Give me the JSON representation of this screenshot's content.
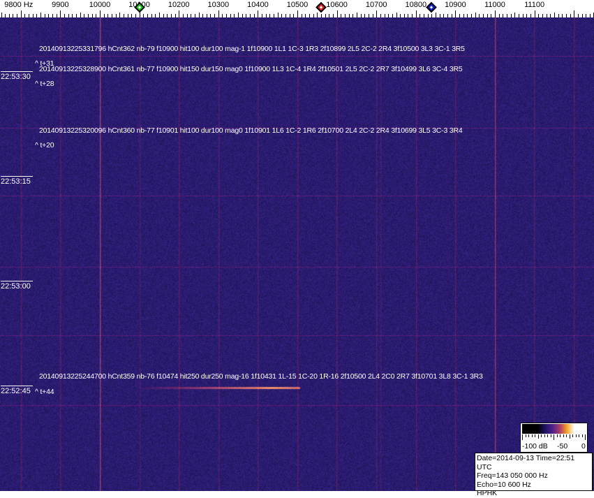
{
  "scale": {
    "unit": "Hz",
    "labels": [
      "9800 Hz",
      "9900",
      "10000",
      "10100",
      "10200",
      "10300",
      "10400",
      "10500",
      "10600",
      "10700",
      "10800",
      "10900",
      "11000",
      "11100"
    ],
    "values": [
      9800,
      9900,
      10000,
      10100,
      10200,
      10300,
      10400,
      10500,
      10600,
      10700,
      10800,
      10900,
      11000,
      11100
    ]
  },
  "markers": [
    {
      "name": "green-marker",
      "freq": 10100,
      "color": "#22cc22"
    },
    {
      "name": "red-marker",
      "freq": 10560,
      "color": "#dd2222"
    },
    {
      "name": "blue-marker",
      "freq": 10840,
      "color": "#1122cc"
    }
  ],
  "detections": [
    {
      "text": "20140913225331796 hCnt362 nb-79 f10900 hit100 dur100 mag-1 1f10900 1L1 1C-3 1R3 2f10899 2L5 2C-2 2R4 3f10500 3L3 3C-1 3R5",
      "offset": "^ t+31"
    },
    {
      "text": "20140913225328900 hCnt361 nb-77 f10900 hit150 dur150 mag0 1f10900 1L3 1C-4 1R4 2f10501 2L5 2C-2 2R7 3f10499 3L6 3C-4 3R5",
      "offset": "^ t+28"
    },
    {
      "text": "20140913225320096 hCnt360 nb-77 f10901 hit100 dur100 mag0 1f10901 1L6 1C-2 1R6 2f10700 2L4 2C-2 2R4 3f10699 3L5 3C-3 3R4",
      "offset": "^ t+20"
    },
    {
      "text": "20140913225244700 hCnt359 nb-76 f10474 hit250 dur250 mag-16 1f10431 1L-15 1C-20 1R-16 2f10500 2L4 2C0 2R7 3f10701 3L8 3C-1 3R3",
      "offset": "^ t+44"
    }
  ],
  "times": [
    "22:53:30",
    "22:53:15",
    "22:53:00",
    "22:52:45"
  ],
  "legend": {
    "min": "-100 dB",
    "mid": "-50",
    "max": "0"
  },
  "info": {
    "date_time": "Date=2014-09-13 Time=22:51 UTC",
    "freq": "Freq=143 050 000 Hz",
    "echo": "Echo=10 600 Hz",
    "station": "HPHK"
  },
  "colors": {
    "background": "#2a1c78",
    "carrier": "#e07040",
    "gridline": "#7a2a8a"
  }
}
